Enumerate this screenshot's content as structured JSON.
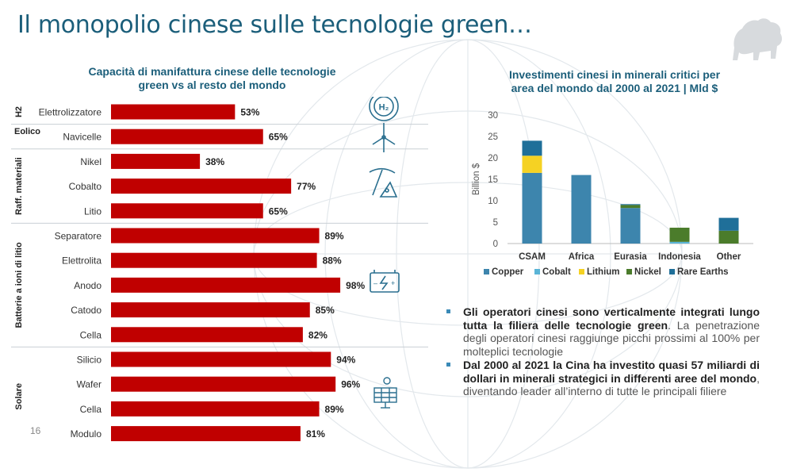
{
  "title": "Il monopolio cinese sulle tecnologie green…",
  "page_number": "16",
  "colors": {
    "accent": "#1b5e7a",
    "bar": "#c00000",
    "copper": "#3d85ad",
    "cobalt": "#5ab4d6",
    "lithium": "#f5d223",
    "nickel": "#4b7c2b",
    "rare_earths": "#1f6f99"
  },
  "left_chart_title_line1": "Capacità di manifattura cinese delle tecnologie",
  "left_chart_title_line2": "green vs al resto del mondo",
  "right_chart_title_line1": "Investimenti cinesi in minerali critici per",
  "right_chart_title_line2": "area del mondo dal 2000 al 2021 | Mld $",
  "chart_data": [
    {
      "type": "bar",
      "orientation": "horizontal",
      "title": "Capacità di manifattura cinese delle tecnologie green vs al resto del mondo",
      "groups": [
        {
          "name": "H2",
          "items": [
            {
              "label": "Elettrolizzatore",
              "value": 53,
              "display": "53%"
            }
          ]
        },
        {
          "name": "Eolico",
          "items": [
            {
              "label": "Navicelle",
              "value": 65,
              "display": "65%"
            }
          ]
        },
        {
          "name": "Raff. materiali",
          "items": [
            {
              "label": "Nikel",
              "value": 38,
              "display": "38%"
            },
            {
              "label": "Cobalto",
              "value": 77,
              "display": "77%"
            },
            {
              "label": "Litio",
              "value": 65,
              "display": "65%"
            }
          ]
        },
        {
          "name": "Batterie a ioni di litio",
          "items": [
            {
              "label": "Separatore",
              "value": 89,
              "display": "89%"
            },
            {
              "label": "Elettrolita",
              "value": 88,
              "display": "88%"
            },
            {
              "label": "Anodo",
              "value": 98,
              "display": "98%"
            },
            {
              "label": "Catodo",
              "value": 85,
              "display": "85%"
            },
            {
              "label": "Cella",
              "value": 82,
              "display": "82%"
            }
          ]
        },
        {
          "name": "Solare",
          "items": [
            {
              "label": "Silicio",
              "value": 94,
              "display": "94%"
            },
            {
              "label": "Wafer",
              "value": 96,
              "display": "96%"
            },
            {
              "label": "Cella",
              "value": 89,
              "display": "89%"
            },
            {
              "label": "Modulo",
              "value": 81,
              "display": "81%"
            }
          ]
        }
      ],
      "xlim": [
        0,
        100
      ]
    },
    {
      "type": "bar",
      "stacked": true,
      "title": "Investimenti cinesi in minerali critici per area del mondo dal 2000 al 2021 | Mld $",
      "ylabel": "Billion $",
      "ylim": [
        0,
        30
      ],
      "yticks": [
        0,
        5,
        10,
        15,
        20,
        25,
        30
      ],
      "categories": [
        "CSAM",
        "Africa",
        "Eurasia",
        "Indonesia",
        "Other"
      ],
      "series": [
        {
          "name": "Copper",
          "values": [
            16.5,
            16,
            8.3,
            0,
            0
          ]
        },
        {
          "name": "Cobalt",
          "values": [
            0,
            0,
            0,
            0.4,
            0
          ]
        },
        {
          "name": "Lithium",
          "values": [
            4,
            0,
            0,
            0,
            0
          ]
        },
        {
          "name": "Nickel",
          "values": [
            0,
            0,
            0.7,
            3.3,
            3
          ]
        },
        {
          "name": "Rare Earths",
          "values": [
            3.5,
            0,
            0.2,
            0,
            3
          ]
        }
      ]
    }
  ],
  "bullets": [
    {
      "bold": "Gli operatori cinesi sono verticalmente integrati lungo tutta la filiera delle tecnologie green",
      "normal": ". La penetrazione degli operatori cinesi raggiunge picchi prossimi al 100% per molteplici tecnologie"
    },
    {
      "bold": "Dal 2000 al 2021 la Cina ha investito quasi 57 miliardi di dollari in minerali strategici in differenti aree del mondo",
      "normal": ", diventando leader all’interno di tutte le principali filiere"
    }
  ],
  "icons": [
    "h2-icon",
    "wind-turbine-icon",
    "pickaxe-icon",
    "battery-icon",
    "solar-panel-icon"
  ]
}
